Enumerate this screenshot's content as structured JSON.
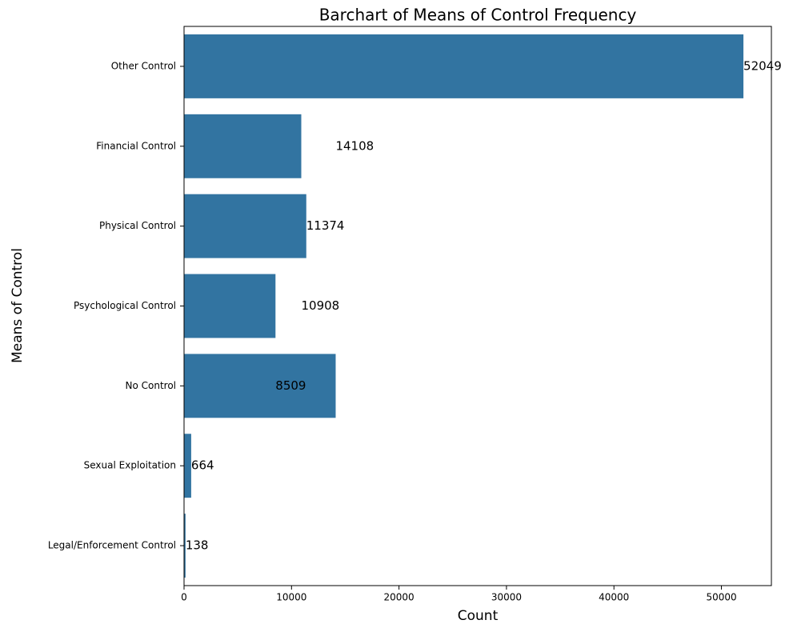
{
  "chart_data": {
    "type": "barh",
    "title": "Barchart of Means of Control Frequency",
    "xlabel": "Count",
    "ylabel": "Means of Control",
    "categories": [
      "Other Control",
      "Financial Control",
      "Physical Control",
      "Psychological Control",
      "No Control",
      "Sexual Exploitation",
      "Legal/Enforcement Control"
    ],
    "values": [
      52049,
      10908,
      11374,
      8509,
      14108,
      664,
      138
    ],
    "annotations": [
      52049,
      14108,
      11374,
      10908,
      8509,
      664,
      138
    ],
    "color": "#3274a1",
    "xlim": [
      0,
      54651
    ],
    "xticks": [
      0,
      10000,
      20000,
      30000,
      40000,
      50000
    ]
  }
}
